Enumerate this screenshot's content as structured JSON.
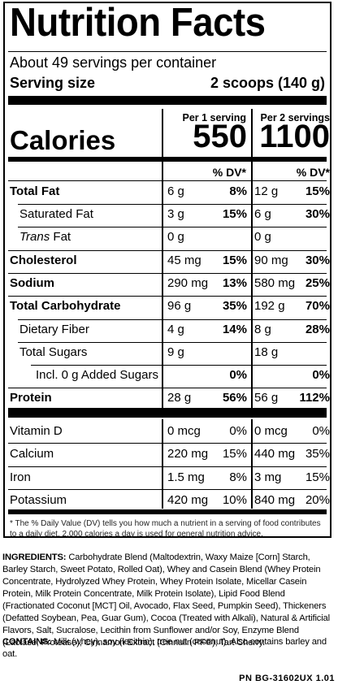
{
  "title": "Nutrition Facts",
  "servings_per_container": "About 49 servings per container",
  "serving_size_label": "Serving size",
  "serving_size_value": "2 scoops (140 g)",
  "col1_header": "Per 1 serving",
  "col2_header": "Per 2 servings",
  "calories_label": "Calories",
  "calories_1": "550",
  "calories_2": "1100",
  "dv_header": "% DV*",
  "nutrients": [
    {
      "label": "Total Fat",
      "amt1": "6 g",
      "dv1": "8%",
      "amt2": "12 g",
      "dv2": "15%"
    },
    {
      "label": "Saturated Fat",
      "amt1": "3 g",
      "dv1": "15%",
      "amt2": "6 g",
      "dv2": "30%"
    },
    {
      "label_italic": "Trans",
      "label_rest": " Fat",
      "amt1": "0 g",
      "dv1": "",
      "amt2": "0 g",
      "dv2": ""
    },
    {
      "label": "Cholesterol",
      "amt1": "45 mg",
      "dv1": "15%",
      "amt2": "90 mg",
      "dv2": "30%"
    },
    {
      "label": "Sodium",
      "amt1": "290 mg",
      "dv1": "13%",
      "amt2": "580 mg",
      "dv2": "25%"
    },
    {
      "label": "Total Carbohydrate",
      "amt1": "96 g",
      "dv1": "35%",
      "amt2": "192 g",
      "dv2": "70%"
    },
    {
      "label": "Dietary Fiber",
      "amt1": "4 g",
      "dv1": "14%",
      "amt2": "8 g",
      "dv2": "28%"
    },
    {
      "label": "Total Sugars",
      "amt1": "9 g",
      "dv1": "",
      "amt2": "18 g",
      "dv2": ""
    },
    {
      "label": "Incl. 0 g Added Sugars",
      "amt1": "",
      "dv1": "0%",
      "amt2": "",
      "dv2": "0%"
    },
    {
      "label": "Protein",
      "amt1": "28 g",
      "dv1": "56%",
      "amt2": "56 g",
      "dv2": "112%"
    }
  ],
  "vitamins": [
    {
      "label": "Vitamin D",
      "amt1": "0 mcg",
      "dv1": "0%",
      "amt2": "0 mcg",
      "dv2": "0%"
    },
    {
      "label": "Calcium",
      "amt1": "220 mg",
      "dv1": "15%",
      "amt2": "440 mg",
      "dv2": "35%"
    },
    {
      "label": "Iron",
      "amt1": "1.5 mg",
      "dv1": "8%",
      "amt2": "3 mg",
      "dv2": "15%"
    },
    {
      "label": "Potassium",
      "amt1": "420 mg",
      "dv1": "10%",
      "amt2": "840 mg",
      "dv2": "20%"
    }
  ],
  "footnote": "* The % Daily Value (DV) tells you how much a nutrient in a serving of food contributes to a daily diet. 2,000 calories a day is used for general nutrition advice.",
  "ingredients_label": "INGREDIENTS:",
  "ingredients_text": " Carbohydrate Blend (Maltodextrin, Waxy Maize [Corn] Starch, Barley Starch, Sweet Potato, Rolled Oat), Whey and Casein Blend (Whey Protein Concentrate, Hydrolyzed Whey Protein, Whey Protein Isolate, Micellar Casein Protein, Milk Protein Concentrate, Milk Protein Isolate), Lipid Food Blend (Fractionated Coconut [MCT] Oil, Avocado, Flax Seed, Pumpkin Seed), Thickeners (Defatted Soybean, Pea, Guar Gum), Cocoa (Treated with Alkali), Natural & Artificial Flavors, Salt, Sucralose, Lecithin from Sunflower and/or Soy, Enzyme Blend (Lactase, Protease), Cinnamon Extract (Cinnulin PF®), Tart Cherry.",
  "contains_label": "CONTAINS:",
  "contains_text": " Milk (whey), soy (lecithin), tree nut (coconut). Also contains barley and oat.",
  "part_number": "PN BG-31602UX 1.01"
}
